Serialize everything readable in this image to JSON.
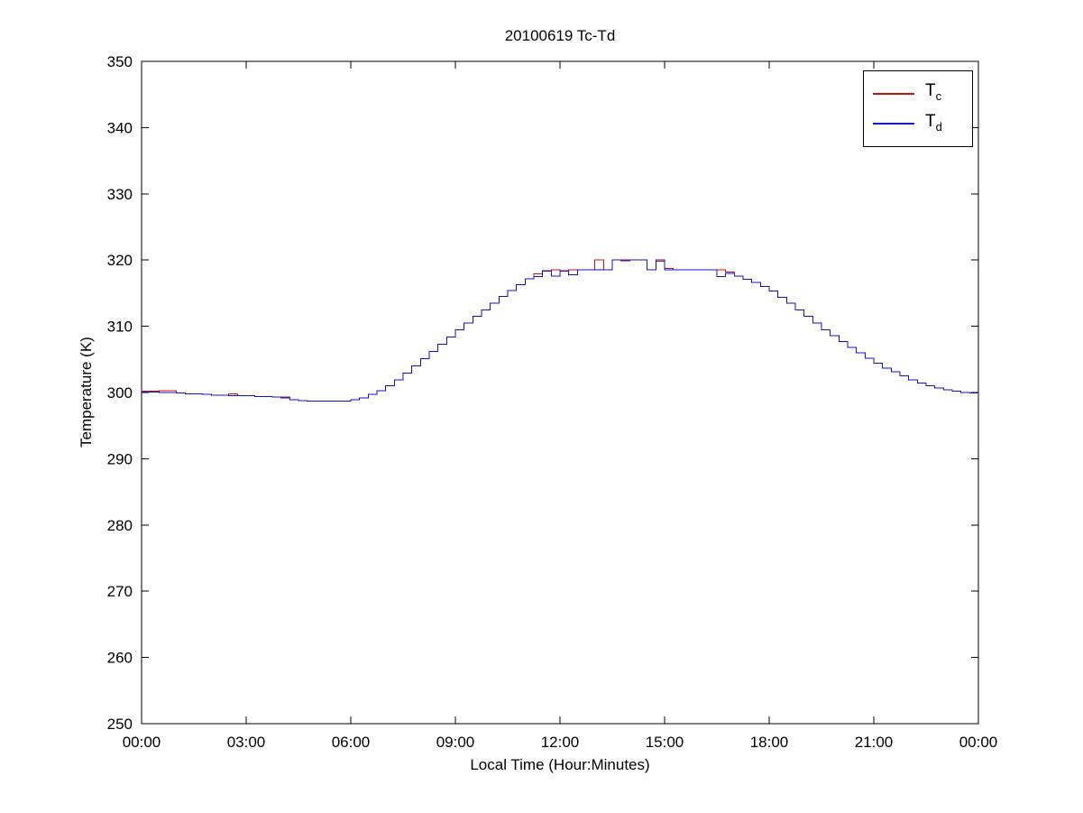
{
  "figure": {
    "title": "20100619 Tc-Td",
    "xlabel": "Local Time (Hour:Minutes)",
    "ylabel": "Temperature (K)"
  },
  "chart_data": {
    "type": "line",
    "title": "20100619 Tc-Td",
    "xlabel": "Local Time (Hour:Minutes)",
    "ylabel": "Temperature (K)",
    "x_unit": "minutes_after_midnight",
    "x_sample_interval_minutes": 15,
    "xlim": [
      0,
      1440
    ],
    "ylim": [
      250,
      350
    ],
    "x_ticks_minutes": [
      0,
      180,
      360,
      540,
      720,
      900,
      1080,
      1260,
      1440
    ],
    "x_tick_labels": [
      "00:00",
      "03:00",
      "06:00",
      "09:00",
      "12:00",
      "15:00",
      "18:00",
      "21:00",
      "00:00"
    ],
    "y_ticks": [
      250,
      260,
      270,
      280,
      290,
      300,
      310,
      320,
      330,
      340,
      350
    ],
    "grid": false,
    "line_style": "step",
    "legend_position": "top-right",
    "axis_color": "#000000",
    "series": [
      {
        "name": "Tc",
        "label_main": "T",
        "label_sub": "c",
        "color": "#cc1111",
        "values": [
          300.2,
          300.2,
          300.3,
          300.3,
          299.9,
          299.8,
          299.8,
          299.7,
          299.6,
          299.6,
          299.8,
          299.5,
          299.5,
          299.4,
          299.4,
          299.3,
          299.3,
          298.9,
          298.8,
          298.7,
          298.7,
          298.7,
          298.7,
          298.7,
          298.9,
          299.2,
          299.7,
          300.3,
          301.0,
          301.9,
          302.9,
          304.0,
          305.1,
          306.2,
          307.3,
          308.4,
          309.5,
          310.5,
          311.5,
          312.5,
          313.5,
          314.5,
          315.4,
          316.3,
          317.2,
          317.9,
          318.3,
          318.5,
          318.3,
          318.5,
          318.5,
          318.5,
          320.0,
          318.5,
          320.0,
          320.0,
          320.0,
          320.0,
          318.5,
          319.8,
          318.7,
          318.5,
          318.5,
          318.5,
          318.5,
          318.5,
          318.5,
          318.2,
          317.6,
          317.1,
          316.6,
          316.0,
          315.3,
          314.4,
          313.5,
          312.5,
          311.5,
          310.5,
          309.5,
          308.6,
          307.7,
          306.8,
          306.0,
          305.2,
          304.4,
          303.7,
          303.1,
          302.5,
          301.9,
          301.4,
          301.0,
          300.7,
          300.4,
          300.2,
          300.0,
          299.9,
          299.8
        ]
      },
      {
        "name": "Td",
        "label_main": "T",
        "label_sub": "d",
        "color": "#1111cc",
        "values": [
          300.1,
          300.1,
          300.0,
          300.0,
          299.9,
          299.8,
          299.8,
          299.7,
          299.6,
          299.6,
          299.5,
          299.5,
          299.5,
          299.4,
          299.4,
          299.3,
          299.2,
          298.9,
          298.8,
          298.7,
          298.7,
          298.7,
          298.7,
          298.7,
          298.9,
          299.2,
          299.7,
          300.3,
          301.0,
          301.9,
          302.9,
          304.0,
          305.1,
          306.2,
          307.3,
          308.4,
          309.5,
          310.5,
          311.5,
          312.5,
          313.5,
          314.5,
          315.4,
          316.3,
          317.2,
          317.5,
          318.4,
          317.6,
          318.4,
          317.8,
          318.5,
          318.5,
          318.5,
          318.5,
          320.0,
          319.9,
          320.0,
          320.0,
          318.5,
          320.0,
          318.5,
          318.5,
          318.5,
          318.5,
          318.5,
          318.5,
          317.5,
          318.0,
          317.6,
          317.1,
          316.6,
          316.0,
          315.3,
          314.4,
          313.5,
          312.5,
          311.5,
          310.5,
          309.5,
          308.6,
          307.7,
          306.8,
          306.0,
          305.2,
          304.4,
          303.7,
          303.1,
          302.5,
          301.9,
          301.4,
          301.0,
          300.7,
          300.4,
          300.2,
          300.0,
          299.9,
          299.8
        ]
      }
    ]
  }
}
